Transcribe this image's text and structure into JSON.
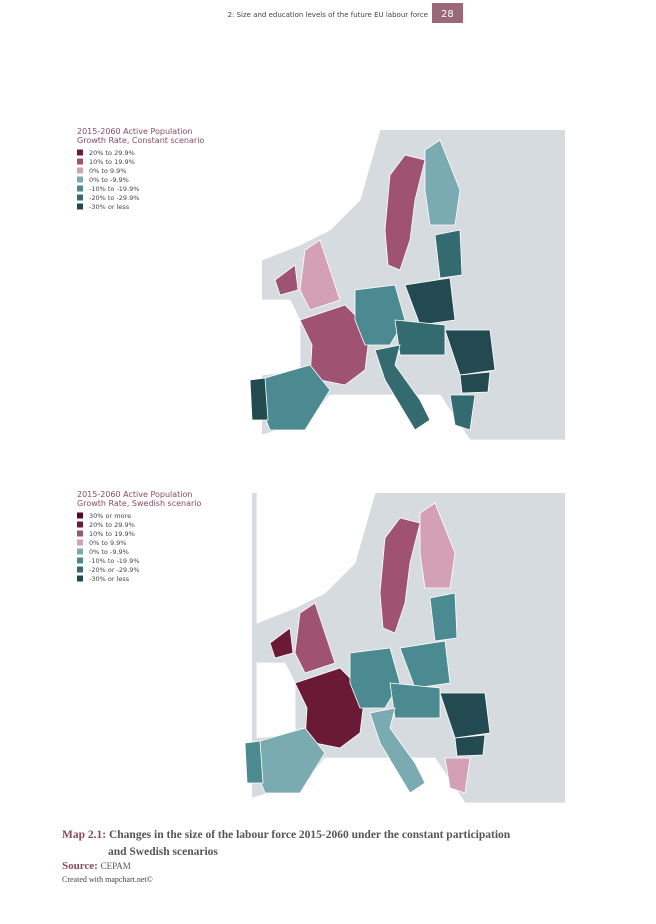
{
  "header": {
    "title": "2: Size and education levels of the future EU labour force",
    "page": "28"
  },
  "maps": [
    {
      "legend_title": [
        "2015-2060 Active Population",
        "Growth Rate, Constant scenario"
      ],
      "legend": [
        {
          "label": "20% to 29.9%",
          "color": "#6b1a35"
        },
        {
          "label": "10% to 19.9%",
          "color": "#a05272"
        },
        {
          "label": "0% to 9.9%",
          "color": "#d4a0b4"
        },
        {
          "label": "0% to -9.9%",
          "color": "#7aabb0"
        },
        {
          "label": "-10% to -19.9%",
          "color": "#4a8a90"
        },
        {
          "label": "-20% to -29.9%",
          "color": "#336b70"
        },
        {
          "label": "-30% or less",
          "color": "#234a50"
        }
      ]
    },
    {
      "legend_title": [
        "2015-2060 Active Population",
        "Growth Rate, Swedish scenario"
      ],
      "legend": [
        {
          "label": "30% or more",
          "color": "#4e0c22"
        },
        {
          "label": "20% to 29.9%",
          "color": "#6b1a35"
        },
        {
          "label": "10% to 19.9%",
          "color": "#a05272"
        },
        {
          "label": "0% to 9.9%",
          "color": "#d4a0b4"
        },
        {
          "label": "0% to -9.9%",
          "color": "#7aabb0"
        },
        {
          "label": "-10% to -19.9%",
          "color": "#4a8a90"
        },
        {
          "label": "-20% or -29.9%",
          "color": "#336b70"
        },
        {
          "label": "-30% or less",
          "color": "#234a50"
        }
      ]
    }
  ],
  "caption": {
    "label": "Map 2.1:",
    "lines": [
      "Changes in the size of the labour force 2015-2060 under the constant participation",
      "and Swedish scenarios"
    ]
  },
  "source": {
    "label": "Source:",
    "text": "CEPAM"
  },
  "credit": "Created with mapchart.net©"
}
